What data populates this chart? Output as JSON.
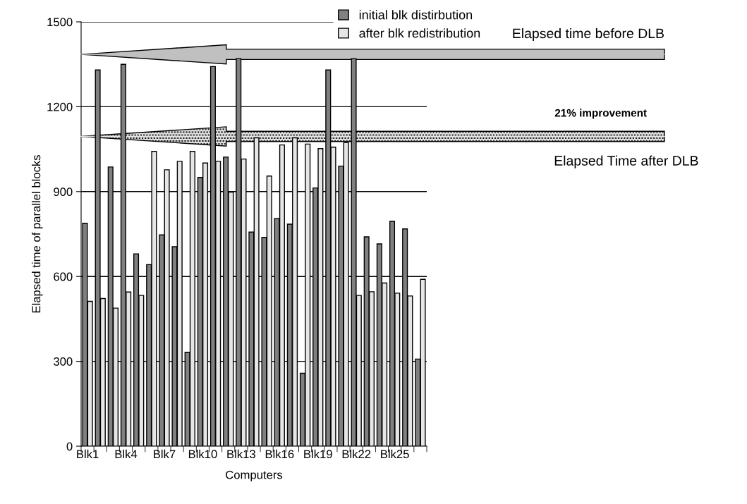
{
  "chart_data": {
    "type": "bar",
    "xlabel": "Computers",
    "ylabel": "Elapsed time of parallel blocks",
    "categories": [
      "Blk1",
      null,
      null,
      "Blk4",
      null,
      null,
      "Blk7",
      null,
      null,
      "Blk10",
      null,
      null,
      "Blk13",
      null,
      null,
      "Blk16",
      null,
      null,
      "Blk19",
      null,
      null,
      "Blk22",
      null,
      null,
      "Blk25",
      null,
      null
    ],
    "series": [
      {
        "name": "initial blk distirbution",
        "color": "#808080",
        "values": [
          788,
          1330,
          987,
          1350,
          680,
          642,
          747,
          705,
          332,
          950,
          1342,
          1022,
          1370,
          757,
          738,
          805,
          785,
          258,
          913,
          1330,
          990,
          1370,
          740,
          715,
          795,
          768,
          308
        ]
      },
      {
        "name": "after blk redistribution",
        "color": "#e6e6e6",
        "values": [
          512,
          522,
          488,
          545,
          533,
          1042,
          977,
          1007,
          1042,
          1001,
          1007,
          898,
          1015,
          1090,
          955,
          1065,
          1090,
          1068,
          1052,
          1057,
          1073,
          533,
          546,
          577,
          541,
          531,
          590
        ]
      }
    ],
    "ylim": [
      0,
      1500
    ],
    "yticks": [
      0,
      300,
      600,
      900,
      1200,
      1500
    ],
    "grid": "y",
    "legend": "top",
    "ref_lines": [
      {
        "axis": "y",
        "value": 1385,
        "label": "Elapsed time before DLB",
        "color": "#c0c0c0"
      },
      {
        "axis": "y",
        "value": 1095,
        "label": "Elapsed Time after DLB",
        "color": "#e6e6e6"
      }
    ],
    "annotations": [
      "21% improvement"
    ]
  }
}
